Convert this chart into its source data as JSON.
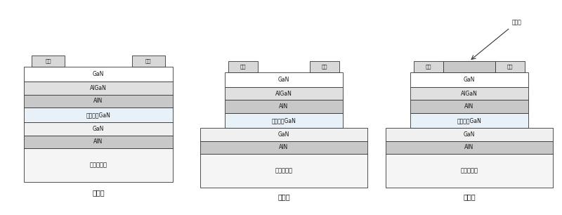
{
  "bg_color": "#ffffff",
  "c_white": "#ffffff",
  "c_light": "#f0f0f0",
  "c_mid": "#e0e0e0",
  "c_dark": "#c8c8c8",
  "c_highgan": "#e8f0f8",
  "c_metal": "#d8d8d8",
  "c_substrate": "#f5f5f5",
  "ec": "#333333",
  "lw": 0.6,
  "steps": [
    "第一步",
    "第二步",
    "第三步"
  ],
  "metal_label": "金属",
  "passivation_label": "钝化层",
  "layers_top": [
    "GaN",
    "AlGaN",
    "AlN",
    "高迁移率GaN",
    "GaN",
    "AlN"
  ],
  "substrate_label": "蓝宝石衬底"
}
